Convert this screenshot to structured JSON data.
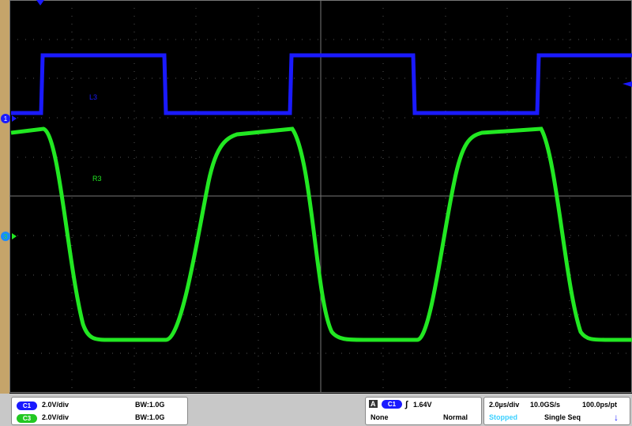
{
  "screen": {
    "trace_labels": [
      "L3",
      "R3"
    ],
    "channel_markers": [
      "1",
      "3"
    ]
  },
  "status": {
    "channels": [
      {
        "badge": "C1",
        "scale": "2.0V/div",
        "bandwidth": "BW:1.0G"
      },
      {
        "badge": "C3",
        "scale": "2.0V/div",
        "bandwidth": "BW:1.0G"
      }
    ],
    "trigger": {
      "icon": "A",
      "source": "C1",
      "level": "1.64V",
      "coupling": "None",
      "mode": "Normal"
    },
    "timebase": {
      "scale": "2.0µs/div",
      "sample_rate": "10.0GS/s",
      "resolution": "100.0ps/pt",
      "state": "Stopped",
      "acquisition": "Single Seq"
    }
  }
}
